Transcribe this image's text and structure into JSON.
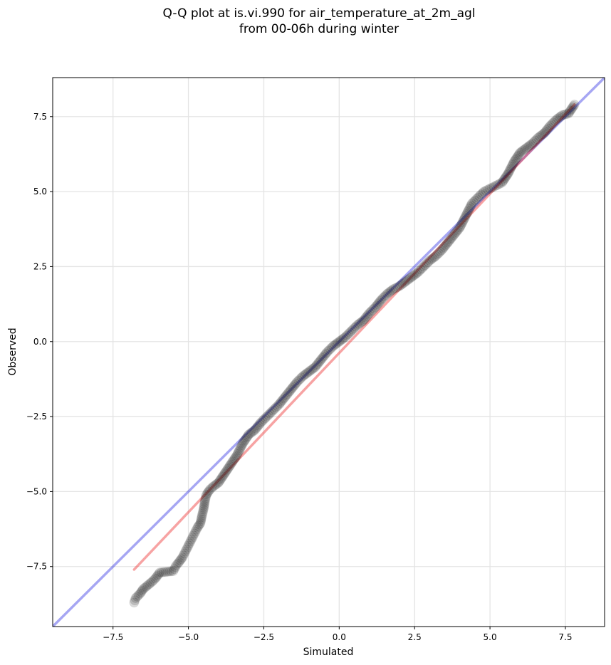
{
  "chart_data": {
    "type": "scatter",
    "title": "Q-Q plot at is.vi.990 for air_temperature_at_2m_agl\nfrom 00-06h during winter",
    "xlabel": "Simulated",
    "ylabel": "Observed",
    "xlim": [
      -9.5,
      8.8
    ],
    "ylim": [
      -9.5,
      8.8
    ],
    "xticks": [
      -7.5,
      -5.0,
      -2.5,
      0.0,
      2.5,
      5.0,
      7.5
    ],
    "yticks": [
      -7.5,
      -5.0,
      -2.5,
      0.0,
      2.5,
      5.0,
      7.5
    ],
    "xtick_labels": [
      "−7.5",
      "−5.0",
      "−2.5",
      "0.0",
      "2.5",
      "5.0",
      "7.5"
    ],
    "ytick_labels": [
      "−7.5",
      "−5.0",
      "−2.5",
      "0.0",
      "2.5",
      "5.0",
      "7.5"
    ],
    "grid": true,
    "identity_line": {
      "from": [
        -9.5,
        -9.5
      ],
      "to": [
        8.8,
        8.8
      ],
      "color": "#0000dd"
    },
    "fit_line": {
      "from": [
        -6.8,
        -7.6
      ],
      "to": [
        7.8,
        7.9
      ],
      "color": "#ee3333"
    },
    "marker_color": "#000000",
    "quantiles_x": [
      -6.8,
      -6.75,
      -6.6,
      -6.5,
      -6.2,
      -6.1,
      -5.95,
      -5.5,
      -5.4,
      -5.35,
      -5.2,
      -5.1,
      -5.0,
      -4.9,
      -4.8,
      -4.7,
      -4.6,
      -4.55,
      -4.5,
      -4.45,
      -4.4,
      -4.3,
      -4.2,
      -4.0,
      -3.8,
      -3.6,
      -3.4,
      -3.2,
      -3.0,
      -2.8,
      -2.6,
      -2.4,
      -2.2,
      -2.0,
      -1.8,
      -1.6,
      -1.4,
      -1.2,
      -1.0,
      -0.8,
      -0.6,
      -0.4,
      -0.2,
      0.0,
      0.2,
      0.4,
      0.6,
      0.8,
      1.0,
      1.2,
      1.4,
      1.6,
      1.8,
      2.0,
      2.2,
      2.4,
      2.6,
      2.8,
      3.0,
      3.2,
      3.4,
      3.6,
      3.8,
      4.0,
      4.2,
      4.4,
      4.6,
      4.8,
      5.0,
      5.2,
      5.4,
      5.6,
      5.8,
      6.0,
      6.2,
      6.4,
      6.6,
      6.8,
      7.0,
      7.2,
      7.4,
      7.6,
      7.8
    ],
    "quantiles_y": [
      -8.7,
      -8.55,
      -8.4,
      -8.25,
      -8.0,
      -7.9,
      -7.7,
      -7.65,
      -7.45,
      -7.4,
      -7.2,
      -7.0,
      -6.8,
      -6.6,
      -6.4,
      -6.2,
      -6.05,
      -5.8,
      -5.6,
      -5.3,
      -5.1,
      -4.95,
      -4.85,
      -4.7,
      -4.4,
      -4.1,
      -3.8,
      -3.4,
      -3.1,
      -2.95,
      -2.7,
      -2.5,
      -2.3,
      -2.1,
      -1.85,
      -1.6,
      -1.35,
      -1.15,
      -1.0,
      -0.85,
      -0.6,
      -0.35,
      -0.15,
      0.0,
      0.15,
      0.35,
      0.55,
      0.7,
      0.95,
      1.15,
      1.4,
      1.6,
      1.75,
      1.85,
      2.0,
      2.15,
      2.3,
      2.5,
      2.7,
      2.85,
      3.05,
      3.3,
      3.55,
      3.8,
      4.2,
      4.6,
      4.8,
      5.0,
      5.1,
      5.2,
      5.3,
      5.6,
      6.0,
      6.3,
      6.45,
      6.6,
      6.8,
      6.95,
      7.2,
      7.4,
      7.55,
      7.6,
      7.9
    ]
  }
}
